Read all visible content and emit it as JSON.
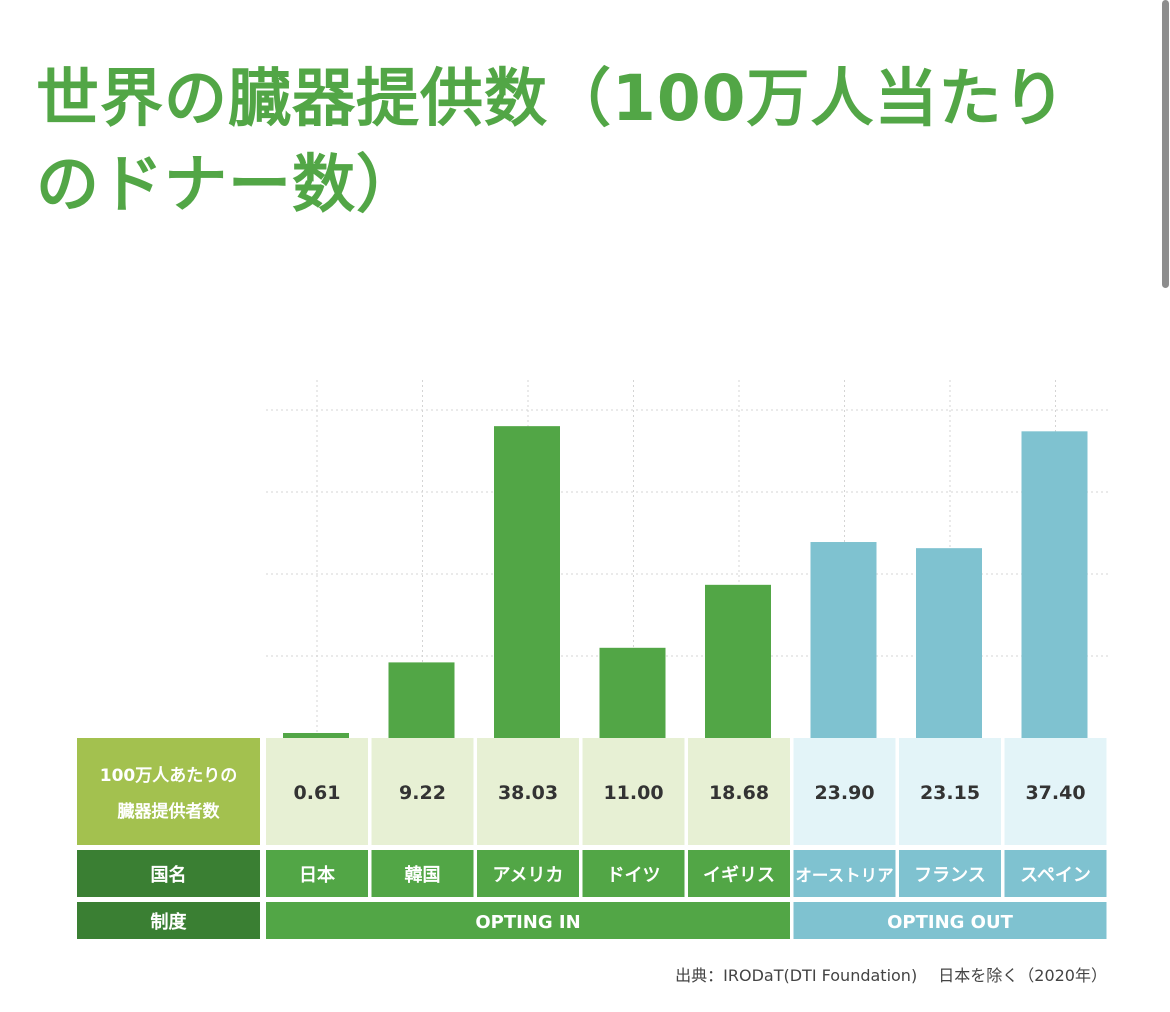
{
  "title": "世界の臓器提供数（100万人当たりのドナー数）",
  "colors": {
    "title": "#52a646",
    "opt_in_bar": "#52a646",
    "opt_out_bar": "#7fc2d0",
    "value_header_bg": "#a3c14f",
    "opt_in_value_bg": "#e7f0d4",
    "opt_out_value_bg": "#e3f4f8",
    "label_header_bg": "#3a7f33",
    "grid": "#d4d4d4",
    "label_text": "#ffffff",
    "value_text": "#333333"
  },
  "chart_data": {
    "type": "bar",
    "ylim": [
      0,
      40
    ],
    "grid": true,
    "categories": [
      "日本",
      "韓国",
      "アメリカ",
      "ドイツ",
      "イギリス",
      "オーストリア",
      "フランス",
      "スペイン"
    ],
    "values": [
      0.61,
      9.22,
      38.03,
      11.0,
      18.68,
      23.9,
      23.15,
      37.4
    ],
    "value_labels": [
      "0.61",
      "9.22",
      "38.03",
      "11.00",
      "18.68",
      "23.90",
      "23.15",
      "37.40"
    ],
    "systems": [
      "OPTING IN",
      "OPTING IN",
      "OPTING IN",
      "OPTING IN",
      "OPTING IN",
      "OPTING OUT",
      "OPTING OUT",
      "OPTING OUT"
    ],
    "table_headers": {
      "value_header_line1": "100万人あたりの",
      "value_header_line2": "臓器提供者数",
      "country_header": "国名",
      "system_header": "制度"
    },
    "system_groups": [
      {
        "label": "OPTING IN"
      },
      {
        "label": "OPTING OUT"
      }
    ]
  },
  "source": "出典：IRODaT(DTI Foundation)　 日本を除く（2020年）"
}
